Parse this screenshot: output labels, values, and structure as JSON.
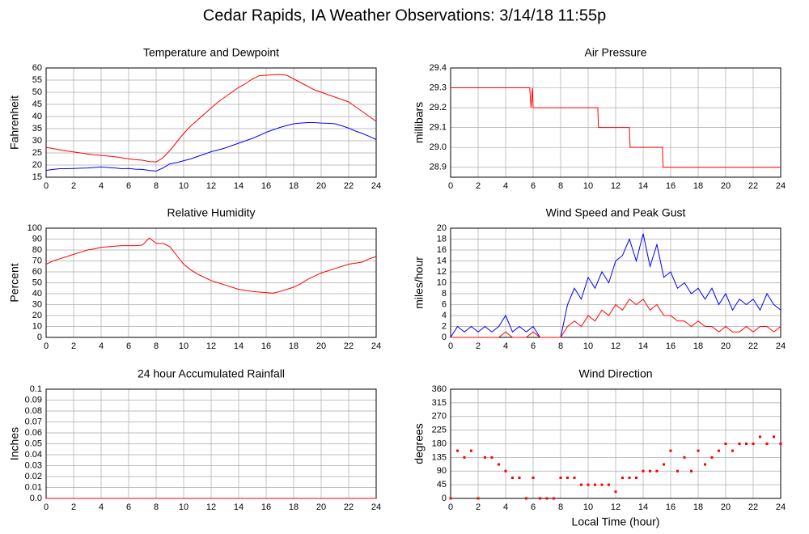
{
  "title": "Cedar Rapids, IA Weather Observations: 3/14/18 11:55p",
  "chart_data": [
    {
      "type": "line",
      "title": "Temperature and Dewpoint",
      "y_label": "Fahrenheit",
      "x": [
        0,
        0.5,
        1,
        1.5,
        2,
        2.5,
        3,
        3.5,
        4,
        4.5,
        5,
        5.5,
        6,
        6.5,
        7,
        7.5,
        8,
        8.5,
        9,
        9.5,
        10,
        10.5,
        11,
        11.5,
        12,
        12.5,
        13,
        13.5,
        14,
        14.5,
        15,
        15.5,
        16,
        16.5,
        17,
        17.5,
        18,
        18.5,
        19,
        19.5,
        20,
        20.5,
        21,
        21.5,
        22,
        22.5,
        23,
        23.5,
        24
      ],
      "series": [
        {
          "color": "#ff0000",
          "values": [
            27.3,
            26.8,
            26.3,
            25.8,
            25.4,
            25.0,
            24.6,
            24.2,
            24.0,
            23.7,
            23.4,
            23.0,
            22.6,
            22.2,
            22.0,
            21.4,
            21.3,
            23.0,
            26.0,
            29.5,
            33.0,
            36.0,
            38.5,
            41.0,
            43.5,
            46.0,
            48.0,
            50.0,
            52.0,
            53.5,
            55.5,
            56.8,
            57.0,
            57.2,
            57.3,
            57.0,
            55.5,
            54.0,
            52.5,
            51.0,
            50.0,
            49.0,
            48.0,
            47.0,
            46.0,
            44.0,
            42.0,
            40.0,
            38.0
          ]
        },
        {
          "color": "#0000ff",
          "values": [
            17.8,
            18.2,
            18.5,
            18.5,
            18.6,
            18.7,
            18.8,
            19.0,
            19.2,
            19.0,
            18.8,
            18.5,
            18.6,
            18.3,
            18.2,
            17.8,
            17.5,
            18.8,
            20.5,
            21.0,
            21.8,
            22.5,
            23.5,
            24.5,
            25.5,
            26.2,
            27.0,
            28.0,
            29.0,
            30.0,
            31.0,
            32.2,
            33.5,
            34.5,
            35.5,
            36.3,
            37.0,
            37.3,
            37.5,
            37.5,
            37.3,
            37.2,
            37.0,
            36.2,
            35.2,
            34.0,
            33.0,
            31.8,
            30.5
          ]
        }
      ],
      "xlim": [
        0,
        24
      ],
      "xticks": [
        0,
        2,
        4,
        6,
        8,
        10,
        12,
        14,
        16,
        18,
        20,
        22,
        24
      ],
      "ylim": [
        15,
        60
      ],
      "yticks": [
        15,
        20,
        25,
        30,
        35,
        40,
        45,
        50,
        55,
        60
      ],
      "grid": true
    },
    {
      "type": "line",
      "title": "Air Pressure",
      "y_label": "millibars",
      "x": [
        0,
        5.75,
        5.85,
        5.95,
        6.0,
        10.7,
        10.75,
        13.0,
        13.05,
        15.4,
        15.45,
        24
      ],
      "series": [
        {
          "color": "#ff0000",
          "values": [
            29.3,
            29.3,
            29.2,
            29.3,
            29.2,
            29.2,
            29.1,
            29.1,
            29.0,
            29.0,
            28.9,
            28.9
          ]
        }
      ],
      "xlim": [
        0,
        24
      ],
      "xticks": [
        0,
        2,
        4,
        6,
        8,
        10,
        12,
        14,
        16,
        18,
        20,
        22,
        24
      ],
      "ylim": [
        28.85,
        29.4
      ],
      "yticks": [
        28.9,
        {
          "value": 29,
          "label": "29.0"
        },
        29.1,
        29.2,
        29.3,
        29.4
      ],
      "grid": true
    },
    {
      "type": "line",
      "title": "Relative Humidity",
      "y_label": "Percent",
      "x": [
        0,
        0.5,
        1,
        1.5,
        2,
        2.5,
        3,
        3.5,
        4,
        4.5,
        5,
        5.5,
        6,
        6.5,
        7,
        7.5,
        8,
        8.5,
        9,
        9.5,
        10,
        10.5,
        11,
        11.5,
        12,
        12.5,
        13,
        13.5,
        14,
        14.5,
        15,
        15.5,
        16,
        16.5,
        17,
        17.5,
        18,
        18.5,
        19,
        19.5,
        20,
        20.5,
        21,
        21.5,
        22,
        22.5,
        23,
        23.5,
        24
      ],
      "series": [
        {
          "color": "#ff0000",
          "values": [
            67,
            70,
            72,
            74,
            76,
            78,
            80,
            81,
            82.5,
            83,
            83.5,
            84,
            84,
            84,
            84.5,
            91,
            86,
            86,
            83,
            75,
            67,
            62,
            58,
            55,
            52,
            50,
            48,
            46,
            44,
            43,
            42,
            41.5,
            41,
            40.5,
            42,
            44,
            46,
            49,
            53,
            56,
            59,
            61,
            63,
            65,
            67,
            68,
            69,
            72,
            74
          ]
        }
      ],
      "xlim": [
        0,
        24
      ],
      "xticks": [
        0,
        2,
        4,
        6,
        8,
        10,
        12,
        14,
        16,
        18,
        20,
        22,
        24
      ],
      "ylim": [
        0,
        100
      ],
      "yticks": [
        0,
        10,
        20,
        30,
        40,
        50,
        60,
        70,
        80,
        90,
        100
      ],
      "grid": true
    },
    {
      "type": "line",
      "title": "Wind Speed and Peak Gust",
      "y_label": "miles/hour",
      "x": [
        0,
        0.5,
        1,
        1.5,
        2,
        2.5,
        3,
        3.5,
        4,
        4.5,
        5,
        5.5,
        6,
        6.5,
        7,
        7.5,
        8,
        8.5,
        9,
        9.5,
        10,
        10.5,
        11,
        11.5,
        12,
        12.5,
        13,
        13.5,
        14,
        14.5,
        15,
        15.5,
        16,
        16.5,
        17,
        17.5,
        18,
        18.5,
        19,
        19.5,
        20,
        20.5,
        21,
        21.5,
        22,
        22.5,
        23,
        23.5,
        24
      ],
      "series": [
        {
          "color": "#0000ff",
          "values": [
            0,
            2,
            1,
            2,
            1,
            2,
            1,
            2,
            4,
            1,
            2,
            1,
            2,
            0,
            0,
            0,
            0,
            6,
            9,
            7,
            11,
            9,
            12,
            10,
            14,
            15,
            18,
            14,
            19,
            13,
            17,
            11,
            12,
            9,
            10,
            8,
            9,
            7,
            9,
            6,
            8,
            5,
            7,
            6,
            7,
            5,
            8,
            6,
            5
          ]
        },
        {
          "color": "#ff0000",
          "values": [
            0,
            0,
            0,
            0,
            0,
            0,
            0,
            0,
            1,
            0,
            0,
            0,
            1,
            0,
            0,
            0,
            0,
            2,
            3,
            2,
            4,
            3,
            5,
            4,
            6,
            5,
            7,
            6,
            7,
            5,
            6,
            4,
            4,
            3,
            3,
            2,
            3,
            2,
            2,
            1,
            2,
            1,
            1,
            2,
            1,
            2,
            2,
            1,
            2
          ]
        }
      ],
      "xlim": [
        0,
        24
      ],
      "xticks": [
        0,
        2,
        4,
        6,
        8,
        10,
        12,
        14,
        16,
        18,
        20,
        22,
        24
      ],
      "ylim": [
        0,
        20
      ],
      "yticks": [
        0,
        2,
        4,
        6,
        8,
        10,
        12,
        14,
        16,
        18,
        20
      ],
      "grid": true
    },
    {
      "type": "line",
      "title": "24 hour Accumulated Rainfall",
      "y_label": "Inches",
      "x": [
        0,
        24
      ],
      "series": [
        {
          "color": "#ff0000",
          "values": [
            0,
            0
          ]
        }
      ],
      "xlim": [
        0,
        24
      ],
      "xticks": [
        0,
        2,
        4,
        6,
        8,
        10,
        12,
        14,
        16,
        18,
        20,
        22,
        24
      ],
      "ylim": [
        0,
        0.1
      ],
      "yticks": [
        {
          "value": 0,
          "label": "0.0"
        },
        0.01,
        0.02,
        0.03,
        0.04,
        0.05,
        0.06,
        0.07,
        0.08,
        0.09,
        0.1
      ],
      "grid": true
    },
    {
      "type": "scatter",
      "title": "Wind Direction",
      "y_label": "degrees",
      "x_label": "Local Time (hour)",
      "color": "#ff0000",
      "x": [
        0,
        0.5,
        1,
        1.5,
        2,
        2.5,
        3,
        3.5,
        4,
        4.5,
        5,
        5.5,
        6,
        6.5,
        7,
        7.5,
        8,
        8.5,
        9,
        9.5,
        10,
        10.5,
        11,
        11.5,
        12,
        12.5,
        13,
        13.5,
        14,
        14.5,
        15,
        15.5,
        16,
        16.5,
        17,
        17.5,
        18,
        18.5,
        19,
        19.5,
        20,
        20.5,
        21,
        21.5,
        22,
        22.5,
        23,
        23.5,
        24
      ],
      "values": [
        0,
        157,
        135,
        157,
        0,
        135,
        135,
        112,
        90,
        68,
        68,
        0,
        68,
        0,
        0,
        0,
        68,
        68,
        68,
        45,
        45,
        45,
        45,
        45,
        22,
        68,
        68,
        68,
        90,
        90,
        90,
        112,
        157,
        90,
        135,
        90,
        157,
        112,
        135,
        157,
        180,
        157,
        180,
        180,
        180,
        203,
        180,
        203,
        180
      ],
      "xlim": [
        0,
        24
      ],
      "xticks": [
        0,
        2,
        4,
        6,
        8,
        10,
        12,
        14,
        16,
        18,
        20,
        22,
        24
      ],
      "ylim": [
        0,
        360
      ],
      "yticks": [
        0,
        45,
        90,
        135,
        180,
        225,
        270,
        315,
        360
      ],
      "grid": true
    }
  ]
}
